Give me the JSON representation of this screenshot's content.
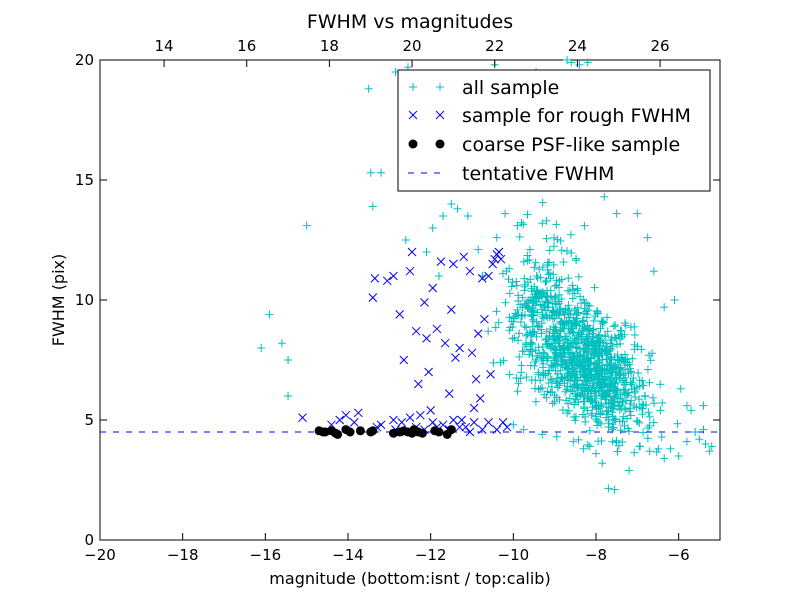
{
  "chart_data": {
    "type": "scatter",
    "title": "FWHM vs magnitudes",
    "xlabel": "magnitude (bottom:isnt / top:calib)",
    "ylabel": "FWHM (pix)",
    "xlim": [
      -20,
      -5
    ],
    "ylim": [
      0,
      20
    ],
    "top_xlim": [
      12.45,
      27.45
    ],
    "x_ticks": [
      -20,
      -18,
      -16,
      -14,
      -12,
      -10,
      -8,
      -6
    ],
    "x_tick_labels": [
      "−20",
      "−18",
      "−16",
      "−14",
      "−12",
      "−10",
      "−8",
      "−6"
    ],
    "top_ticks": [
      14,
      16,
      18,
      20,
      22,
      24,
      26
    ],
    "top_tick_labels": [
      "14",
      "16",
      "18",
      "20",
      "22",
      "24",
      "26"
    ],
    "y_ticks": [
      0,
      5,
      10,
      15,
      20
    ],
    "y_tick_labels": [
      "0",
      "5",
      "10",
      "15",
      "20"
    ],
    "grid": false,
    "legend_position": "top-right",
    "colors": {
      "all": "#00bfbf",
      "rough": "#0000ff",
      "psf": "#000000",
      "tentative": "#0000ff"
    },
    "tentative_fwhm": 4.5,
    "series": [
      {
        "name": "all sample",
        "marker": "plus",
        "color": "#00bfbf",
        "points": [
          [
            -16.1,
            8.0
          ],
          [
            -15.9,
            9.4
          ],
          [
            -15.6,
            8.2
          ],
          [
            -15.45,
            7.5
          ],
          [
            -15.45,
            6.0
          ],
          [
            -15.0,
            13.1
          ],
          [
            -13.5,
            18.8
          ],
          [
            -13.45,
            15.3
          ],
          [
            -13.4,
            13.9
          ],
          [
            -13.2,
            15.3
          ],
          [
            -12.85,
            19.5
          ],
          [
            -12.6,
            12.5
          ],
          [
            -12.55,
            19.7
          ],
          [
            -12.2,
            19.3
          ],
          [
            -12.1,
            12.0
          ],
          [
            -11.95,
            13.0
          ],
          [
            -11.8,
            11.0
          ],
          [
            -11.7,
            13.5
          ],
          [
            -11.5,
            14.0
          ],
          [
            -11.35,
            13.8
          ],
          [
            -11.1,
            13.5
          ],
          [
            -10.85,
            12.1
          ],
          [
            -10.7,
            17.1
          ],
          [
            -10.55,
            15.8
          ],
          [
            -10.45,
            19.8
          ],
          [
            -10.4,
            12.6
          ],
          [
            -10.2,
            13.6
          ],
          [
            -10.0,
            17.3
          ],
          [
            -9.9,
            13.1
          ],
          [
            -9.75,
            18.7
          ],
          [
            -9.6,
            12.1
          ],
          [
            -9.45,
            19.5
          ],
          [
            -9.3,
            13.2
          ],
          [
            -9.2,
            13.3
          ],
          [
            -9.1,
            16.2
          ],
          [
            -8.9,
            15.3
          ],
          [
            -8.7,
            20.0
          ],
          [
            -8.65,
            17.9
          ],
          [
            -8.6,
            19.9
          ],
          [
            -8.4,
            19.8
          ],
          [
            -8.2,
            19.9
          ],
          [
            -8.1,
            17.0
          ],
          [
            -7.9,
            15.0
          ],
          [
            -7.8,
            14.3
          ],
          [
            -7.7,
            16.2
          ],
          [
            -7.5,
            13.6
          ],
          [
            -7.35,
            15.4
          ],
          [
            -7.0,
            13.6
          ],
          [
            -6.75,
            12.6
          ],
          [
            -6.6,
            11.2
          ],
          [
            -6.35,
            9.7
          ],
          [
            -6.1,
            10.0
          ],
          [
            -5.95,
            6.3
          ],
          [
            -5.8,
            5.6
          ],
          [
            -5.7,
            5.4
          ],
          [
            -5.6,
            4.5
          ],
          [
            -5.5,
            4.2
          ],
          [
            -5.4,
            5.6
          ],
          [
            -5.35,
            4.0
          ],
          [
            -5.25,
            3.7
          ],
          [
            -5.2,
            3.9
          ],
          [
            -5.4,
            4.6
          ],
          [
            -5.8,
            4.1
          ],
          [
            -6.0,
            3.5
          ],
          [
            -6.2,
            3.8
          ],
          [
            -6.35,
            3.4
          ],
          [
            -6.7,
            3.7
          ],
          [
            -6.95,
            3.9
          ],
          [
            -7.2,
            2.9
          ],
          [
            -7.55,
            2.1
          ],
          [
            -7.7,
            2.15
          ],
          [
            -7.85,
            3.2
          ],
          [
            -8.0,
            3.6
          ],
          [
            -8.15,
            3.9
          ],
          [
            -8.3,
            3.8
          ],
          [
            -8.55,
            4.1
          ],
          [
            -8.95,
            4.3
          ],
          [
            -9.3,
            4.4
          ],
          [
            -9.75,
            4.6
          ],
          [
            -10.0,
            4.8
          ]
        ],
        "dense_cluster": [
          -8.1,
          7.2,
          1.15,
          2.0
        ]
      },
      {
        "name": "sample for rough FWHM",
        "marker": "x",
        "color": "#0000ff",
        "points": [
          [
            -15.1,
            5.1
          ],
          [
            -14.4,
            4.8
          ],
          [
            -14.2,
            5.0
          ],
          [
            -14.05,
            5.2
          ],
          [
            -13.85,
            4.9
          ],
          [
            -13.75,
            5.3
          ],
          [
            -13.4,
            10.1
          ],
          [
            -13.35,
            10.9
          ],
          [
            -13.05,
            10.8
          ],
          [
            -12.9,
            11.0
          ],
          [
            -12.75,
            9.4
          ],
          [
            -12.65,
            7.5
          ],
          [
            -12.5,
            11.2
          ],
          [
            -12.45,
            12.0
          ],
          [
            -12.35,
            8.7
          ],
          [
            -12.3,
            6.5
          ],
          [
            -12.15,
            9.9
          ],
          [
            -12.1,
            8.4
          ],
          [
            -12.05,
            7.0
          ],
          [
            -12.0,
            5.4
          ],
          [
            -11.95,
            10.5
          ],
          [
            -11.85,
            8.8
          ],
          [
            -11.75,
            11.6
          ],
          [
            -11.65,
            8.2
          ],
          [
            -11.55,
            6.1
          ],
          [
            -11.5,
            9.6
          ],
          [
            -11.45,
            11.5
          ],
          [
            -11.4,
            7.6
          ],
          [
            -11.3,
            8.0
          ],
          [
            -11.25,
            5.0
          ],
          [
            -11.2,
            11.8
          ],
          [
            -11.05,
            11.2
          ],
          [
            -11.0,
            7.8
          ],
          [
            -10.95,
            5.5
          ],
          [
            -10.9,
            6.7
          ],
          [
            -10.85,
            8.6
          ],
          [
            -10.8,
            5.9
          ],
          [
            -10.75,
            10.9
          ],
          [
            -10.7,
            9.2
          ],
          [
            -10.6,
            11.0
          ],
          [
            -10.55,
            6.9
          ],
          [
            -10.5,
            11.5
          ],
          [
            -10.45,
            11.7
          ],
          [
            -10.4,
            11.9
          ],
          [
            -10.35,
            12.0
          ],
          [
            -10.3,
            11.7
          ],
          [
            -12.9,
            5.0
          ],
          [
            -12.7,
            4.9
          ],
          [
            -12.5,
            5.1
          ],
          [
            -12.25,
            5.2
          ],
          [
            -11.95,
            4.9
          ],
          [
            -11.7,
            4.8
          ],
          [
            -11.45,
            5.0
          ],
          [
            -11.15,
            4.7
          ],
          [
            -10.95,
            4.9
          ],
          [
            -10.75,
            4.6
          ],
          [
            -10.6,
            4.9
          ],
          [
            -10.4,
            4.6
          ],
          [
            -10.25,
            4.9
          ],
          [
            -10.15,
            4.7
          ],
          [
            -13.3,
            4.7
          ],
          [
            -13.2,
            4.8
          ],
          [
            -12.85,
            4.6
          ],
          [
            -12.6,
            4.5
          ],
          [
            -12.35,
            4.7
          ],
          [
            -12.15,
            4.6
          ],
          [
            -11.85,
            4.7
          ],
          [
            -11.55,
            4.6
          ],
          [
            -11.3,
            4.7
          ],
          [
            -11.05,
            4.5
          ]
        ]
      },
      {
        "name": "coarse PSF-like sample",
        "marker": "circle",
        "color": "#000000",
        "points": [
          [
            -14.7,
            4.55
          ],
          [
            -14.6,
            4.5
          ],
          [
            -14.55,
            4.5
          ],
          [
            -14.4,
            4.55
          ],
          [
            -14.3,
            4.45
          ],
          [
            -14.25,
            4.4
          ],
          [
            -14.05,
            4.6
          ],
          [
            -13.95,
            4.5
          ],
          [
            -13.7,
            4.55
          ],
          [
            -13.45,
            4.5
          ],
          [
            -13.4,
            4.55
          ],
          [
            -12.9,
            4.45
          ],
          [
            -12.75,
            4.5
          ],
          [
            -12.65,
            4.55
          ],
          [
            -12.55,
            4.5
          ],
          [
            -12.45,
            4.45
          ],
          [
            -12.4,
            4.6
          ],
          [
            -12.3,
            4.5
          ],
          [
            -12.2,
            4.45
          ],
          [
            -11.9,
            4.55
          ],
          [
            -11.8,
            4.5
          ],
          [
            -11.6,
            4.4
          ],
          [
            -11.5,
            4.6
          ]
        ]
      },
      {
        "name": "tentative FWHM",
        "marker": "dashed-line",
        "color": "#0000ff",
        "value": 4.5
      }
    ]
  }
}
